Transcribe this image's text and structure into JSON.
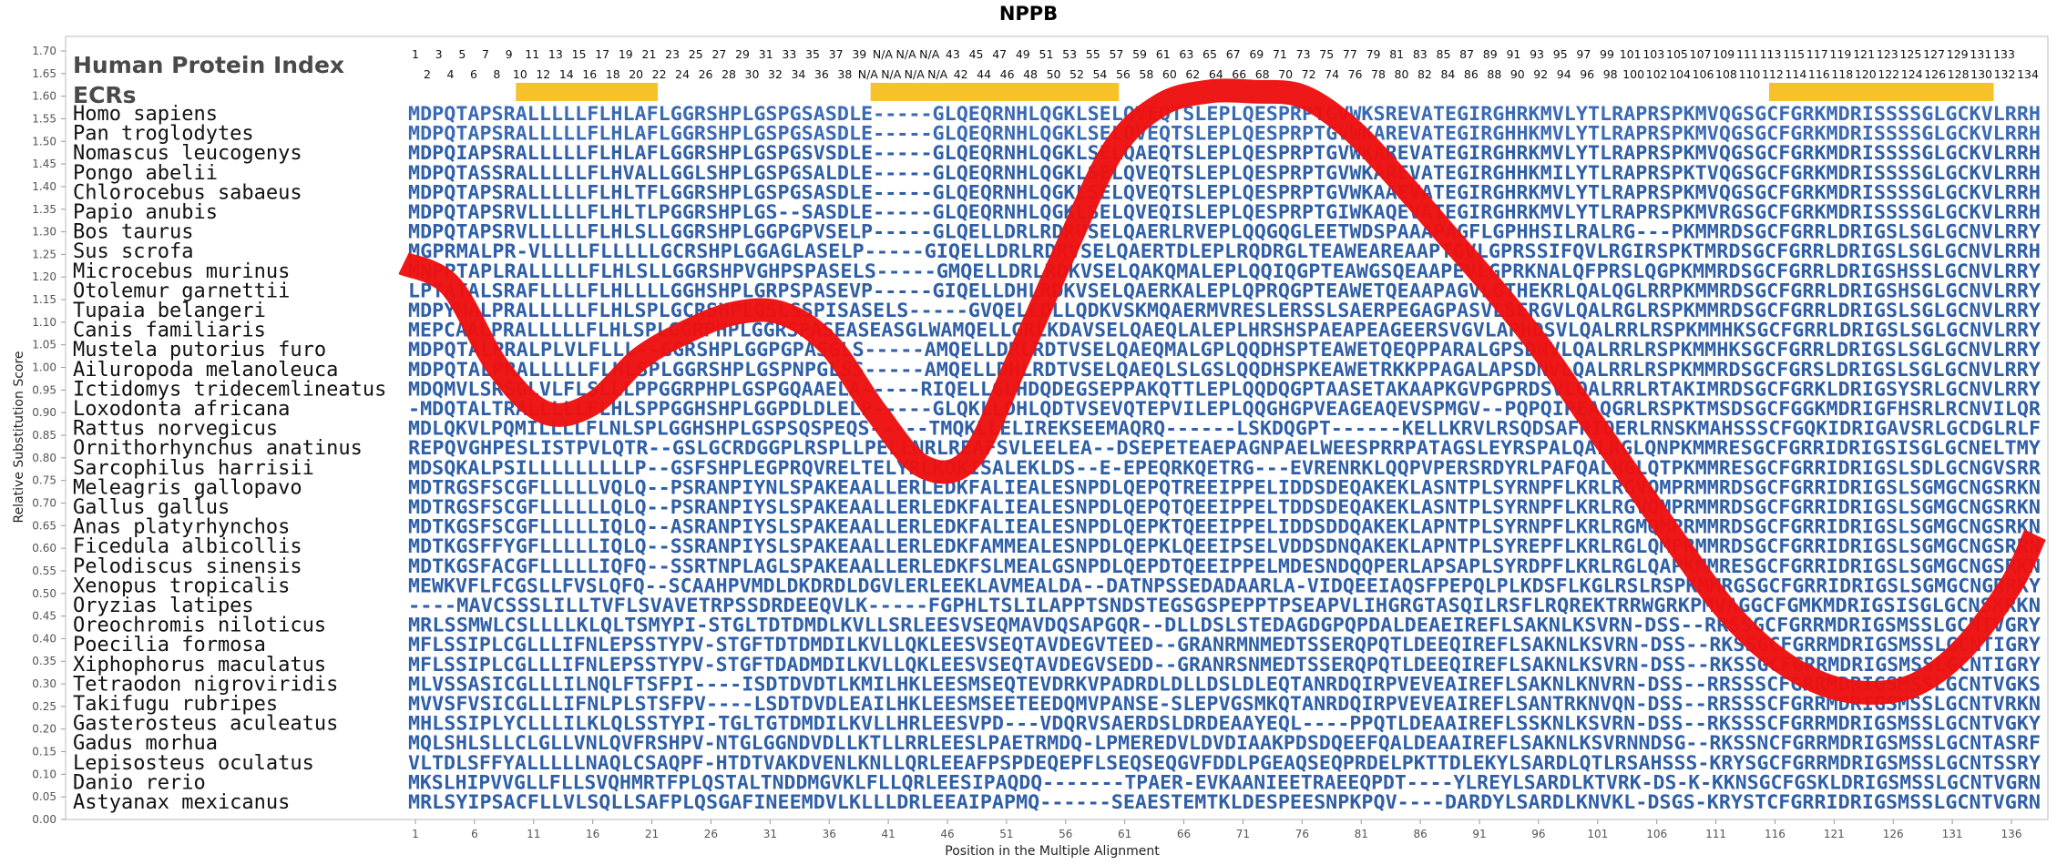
{
  "chart_data": {
    "type": "line",
    "title": "NPPB",
    "xlabel": "Position in the Multiple Alignment",
    "ylabel": "Relative Substitution Score",
    "ylim": [
      0,
      1.7
    ],
    "xlim": [
      1,
      138
    ],
    "y_ticks": [
      "0.00",
      "0.05",
      "0.10",
      "0.15",
      "0.20",
      "0.25",
      "0.30",
      "0.35",
      "0.40",
      "0.45",
      "0.50",
      "0.55",
      "0.60",
      "0.65",
      "0.70",
      "0.75",
      "0.80",
      "0.85",
      "0.90",
      "0.95",
      "1.00",
      "1.05",
      "1.10",
      "1.15",
      "1.20",
      "1.25",
      "1.30",
      "1.35",
      "1.40",
      "1.45",
      "1.50",
      "1.55",
      "1.60",
      "1.65",
      "1.70"
    ],
    "x_ticks": [
      1,
      6,
      11,
      16,
      21,
      26,
      31,
      36,
      41,
      46,
      51,
      56,
      61,
      66,
      71,
      76,
      81,
      86,
      91,
      96,
      101,
      106,
      111,
      116,
      121,
      126,
      131,
      136
    ],
    "human_protein_index_label": "Human Protein Index",
    "ecrs_label": "ECRs",
    "index_row_odd": [
      "1",
      "3",
      "5",
      "7",
      "9",
      "11",
      "13",
      "15",
      "17",
      "19",
      "21",
      "23",
      "25",
      "27",
      "29",
      "31",
      "33",
      "35",
      "37",
      "39",
      "N/A",
      "N/A",
      "N/A",
      "43",
      "45",
      "47",
      "49",
      "51",
      "53",
      "55",
      "57",
      "59",
      "61",
      "63",
      "65",
      "67",
      "69",
      "71",
      "73",
      "75",
      "77",
      "79",
      "81",
      "83",
      "85",
      "87",
      "89",
      "91",
      "93",
      "95",
      "97",
      "99",
      "101",
      "103",
      "105",
      "107",
      "109",
      "111",
      "113",
      "115",
      "117",
      "119",
      "121",
      "123",
      "125",
      "127",
      "129",
      "131",
      "133"
    ],
    "index_row_even": [
      "2",
      "4",
      "6",
      "8",
      "10",
      "12",
      "14",
      "16",
      "18",
      "20",
      "22",
      "24",
      "26",
      "28",
      "30",
      "32",
      "34",
      "36",
      "38",
      "N/A",
      "N/A",
      "N/A",
      "N/A",
      "42",
      "44",
      "46",
      "48",
      "50",
      "52",
      "54",
      "56",
      "58",
      "60",
      "62",
      "64",
      "66",
      "68",
      "70",
      "72",
      "74",
      "76",
      "78",
      "80",
      "82",
      "84",
      "86",
      "88",
      "90",
      "92",
      "94",
      "96",
      "98",
      "100",
      "102",
      "104",
      "106",
      "108",
      "110",
      "112",
      "114",
      "116",
      "118",
      "120",
      "122",
      "124",
      "126",
      "128",
      "130",
      "132",
      "134"
    ],
    "ecrs": [
      [
        10,
        21
      ],
      [
        40,
        60
      ],
      [
        116,
        134
      ]
    ],
    "series": [
      {
        "color": "#ee1111",
        "x": [
          0,
          4,
          8,
          12,
          16,
          20,
          24,
          28,
          32,
          36,
          40,
          44,
          48,
          52,
          56,
          60,
          64,
          68,
          72,
          76,
          80,
          84,
          88,
          92,
          96,
          100,
          104,
          108,
          112,
          116,
          120,
          124,
          128,
          132,
          136,
          138
        ],
        "y": [
          1.23,
          1.18,
          1.0,
          0.9,
          0.92,
          1.02,
          1.08,
          1.12,
          1.12,
          1.05,
          0.9,
          0.78,
          0.8,
          1.02,
          1.26,
          1.48,
          1.58,
          1.61,
          1.61,
          1.6,
          1.53,
          1.42,
          1.3,
          1.18,
          1.05,
          0.9,
          0.75,
          0.6,
          0.46,
          0.36,
          0.3,
          0.28,
          0.3,
          0.38,
          0.52,
          0.63
        ]
      }
    ],
    "alignment": [
      {
        "species": "Homo sapiens",
        "seq": "MDPQTAPSRALLLLLFLHLAFLGGRSHPLGSPGSASDLE-----GLQEQRNHLQGKLSELQVEQTSLEPLQESPRPTGVWKSREVATEGIRGHRKMVLYTLRAPRSPKMVQGSGCFGRKMDRISSSSGLGCKVLRRH"
      },
      {
        "species": "Pan troglodytes",
        "seq": "MDPQTAPSRALLLLLFLHLAFLGGRSHPLGSPGSASDLE-----GLQEQRNHLQGKLSELQVEQTSLEPLQESPRPTGVWKAREVATEGIRGHHKMVLYTLRAPRSPKMVQGSGCFGRKMDRISSSSGLGCKVLRRH"
      },
      {
        "species": "Nomascus leucogenys",
        "seq": "MDPQIAPSRALLLLLFLHLAFLGGRSHPLGSPGSVSDLE-----GLQEQRNHLQGKLSELQAEQTSLEPLQESPRPTGVWKAREVATEGIRGHRKMVLYTLRAPRSPKMVQGSGCFGRKMDRISSSSGLGCKVLRRH"
      },
      {
        "species": "Pongo abelii",
        "seq": "MDPQTASSRALLLLLFLHVALLGGLSHPLGSPGSALDLE-----GLQEQRNHLQGKLSELQVEQTSLEPLQESPRPTGVWKAREVATEGIRGHHKMILYTLRAPRSPKTVQGSGCFGRKMDRISSSSGLGCKVLRRH"
      },
      {
        "species": "Chlorocebus sabaeus",
        "seq": "MDPQTAPSRALLLLLFLHLTFLGGRSHPLGSPGSASDLE-----GLQEQRNHLQGKLSELQVEQTSLEPLQESPRPTGVWKAAEVATEGIRGHRKMVLYTLRAPRSPKMVQGSGCFGRKMDRISSSSGLGCKVLRRH"
      },
      {
        "species": "Papio anubis",
        "seq": "MDPQTAPSRVLLLLLFLHLTLPGGRSHPLGS--SASDLE-----GLQEQRNHLQGKLSELQVEQISLEPLQESPRPTGIWKAQEVATEGIRGHRKMVLYTLRAPRSPKMVRGSGCFGRKMDRISSSSGLGCKVLRRH"
      },
      {
        "species": "Bos taurus",
        "seq": "MDPQTAPSRVLLLLLFLHLSLLGGRSHPLGGPGPVSELP-----GLQELLDRLRDRVSELQAERLRVEPLQQGQGLEETWDSPAAAPAGFLGPHHSILRALRG---PKMMRDSGCFGRRLDRIGSLSGLGCNVLRRY"
      },
      {
        "species": "Sus scrofa",
        "seq": "MGPRMALPR-VLLLLFLLLLLGCRSHPLGGAGLASELP-----GIQELLDRLRDRVSELQAERTDLEPLRQDRGLTEAWEAREAAPTGVLGPRSSIFQVLRGIRSPKTMRDSGCFGRRLDRIGSLSGLGCNVLRRH"
      },
      {
        "species": "Microcebus murinus",
        "seq": "MNPPTAPLRALLLLLFLHLSLLGGRSHPVGHPSPASELS-----GMQELLDRLRDKVSELQAKQMALEPLQQIQGPTEAWGSQEAAPEVLGPRKNALQFPRSLQGPKMMRDSGCFGRRLDRIGSHSSLGCNVLRRY"
      },
      {
        "species": "Otolemur garnettii",
        "seq": "LPTATALSRAFLLLLFLHLLLLGGHSHPLGRPSPASEVP-----GIQELLDHLRDKVSELQAERKALEPLQPRQGPTEAWETQEAAPAGVLGTHEKRLQALQGLRRPKMMRDSGCFGRRLDRIGSHSGLGCNVLRRY"
      },
      {
        "species": "Tupaia belangeri",
        "seq": "MDPYMALPRALLLLLFLHLSPLGCRSHPLGSLSSPISASELS-----GVQELLDLLQDKVSKMQAERMVRESLERSSLSAERPEGAGPASVLSERGVLQALRGLRSPKMMRDSGCFGRRLDRIGSLSGLGCNVLRRY"
      },
      {
        "species": "Canis familiaris",
        "seq": "MEPCAALPRALLLLLFLHLSPLGGRPHPLGGRSPASEASEASGLWAMQELLGRLKDAVSELQAEQLALEPLHRSHSPAEAPEAGEERSVGVLAPHDSVLQALRRLRSPKMMHKSGCFGRRLDRIGSLSGLGCNVLRRY"
      },
      {
        "species": "Mustela putorius furo",
        "seq": "MDPQTALPRALPLVLFLLL--GGRSHPLGGPGPASGLS-----AMQELLDRLRDTVSELQAEQMALGPLQQDHSPTEAWETQEQPPARALGPSDNVLQALRRLRSPKMMHKSGCFGRRLDRIGSLSGLGCNVLRRY"
      },
      {
        "species": "Ailuropoda melanoleuca",
        "seq": "MDPQTALPRALLLLLFLHLSPLGGRSHPLGSPNPGLSS-----AMQELLDHLRDTVSELQAEQLSLGSLQQDHSPKEAWETRKKPPAGALAPSDNVLQALRRLRSPKMMRDSGCFGRSLDRIGSLSGLGCNVLRRY"
      },
      {
        "species": "Ictidomys tridecemlineatus",
        "seq": "MDQMVLSRSGLVLFLSLLLPPGGRPHPLGSPGQAAELA-----RIQELLGLHDQDEGSEPPAKQTTLEPLQQDQGPTAASETAKAAPKGVPGPRDSVLQALRRLRTAKIMRDSGCFGRKLDRIGSYSRLGCNVLRRY"
      },
      {
        "species": "Loxodonta africana",
        "seq": "-MDQTALTRALLLLLFLHLSPPGGHSHPLGGPDLDLELP-----GLQKLLDHLQDTVSEVQTEPVILEPLQQGHGPVEAGEAQEVSPMGV--PQPQIPEAQGRLRSPKTMSDSGCFGGKMDRIGFHSRLRCNVILQR"
      },
      {
        "species": "Rattus norvegicus",
        "seq": "MDLQKVLPQMILLLLFLNLSPLGGHSHPLGSPSQSPEQS-----TMQKLLELIREKSEEMAQRQ------LSKDQGPT------KELLKRVLRSQDSAFRIQERLRNSKMAHSSSCFGQKIDRIGAVSRLGCDGLRLF"
      },
      {
        "species": "Ornithorhynchus anatinus",
        "seq": "REPQVGHPESLISTPVLQTR--GSLGCRDGGPLRSPLLPELLNRLREAFSVLEELEA--DSEPETEAEPAGNPAELWEESPRRPATAGSLEYRSPALQALRGLQNPKMMRESGCFGRRIDRIGSISGLGCNELTMY"
      },
      {
        "species": "Sarcophilus harrisii",
        "seq": "MDSQKALPSILLLLLLLLLP--GSFSHPLEGPRQVRELTELYRLKDKISALEKLDS--E-EPEQRKQETRG---EVRENRKLQQPVPERSRDYRLPAFQALHGLQTPKMMRESGCFGRRIDRIGSLSDLGCNGVSRR"
      },
      {
        "species": "Meleagris gallopavo",
        "seq": "MDTRGSFSCGFLLLLLVQLQ--PSRANPIYNLSPAKEAALLERLEDKFALIEALESNPDLQEPQTREEIPPELIDDSDEQAKEKLASNTPLSYRNPFLKRLRGVQMPRMMRDSGCFGRRIDRIGSLSGMGCNGSRKN"
      },
      {
        "species": "Gallus gallus",
        "seq": "MDTRGSFSCGFLLLLLLQLQ--PSRANPIYSLSPAKEAALLERLEDKFALIEALESNPDLQEPQTQEEIPPELTDDSDEQAKEKLASNTPLSYRNPFLKRLRGVQMPRMMRDSGCFGRRIDRIGSLSGMGCNGSRKN"
      },
      {
        "species": "Anas platyrhynchos",
        "seq": "MDTKGSFSCGFLLLLLIQLQ--ASRANPIYSLSPAKEAALLERLEDKFALIEALESNPDLQEPKTQEEIPPELIDDSDDQAKEKLAPNTPLSYRNPFLKRLRGMQMPRMMRDSGCFGRRIDRIGSLSGMGCNGSRKN"
      },
      {
        "species": "Ficedula albicollis",
        "seq": "MDTKGSFFYGFLLLLLIQLQ--SSRANPIYSLSPAKEAALLERLEDKFAMMEALESNPDLQEPKLQEEIPSELVDDSDNQAKEKLAPNTPLSYREPFLKRLRGLQMPRMMRDSGCFGRRIDRIGSLSGMGCNGSRRN"
      },
      {
        "species": "Pelodiscus sinensis",
        "seq": "MDTKGSFACGFLLLLLIQFQ--SSRTNPLAGLSPAKEAALLERLEDKFSLMEALGSNPDLQEPDTQEEIPPELMDESNDQQPERLAPSAPLSYRDPFLKRLRGLQAPKMMRESGCFGRRIDRIGSLSGMGCNGSRKN"
      },
      {
        "species": "Xenopus tropicalis",
        "seq": "MEWKVFLFCGSLLFVSLQFQ--SCAAHPVMDLDKDRDLDGVLERLEEKLAVMEALDA--DATNPSSEDADAARLA-VIDQEEIAQSFPEPQLPLKDSFLKGLRSLRSPKMMRGSGCFGRRIDRIGSLSGMGCNGRRKY"
      },
      {
        "species": "Oryzias latipes",
        "seq": "----MAVCSSSLILLTVFLSVAVETRPSSDRDEEQVLK-----FGPHLTSLILAPPTSNDSTEGSGSPEPPTPSEAPVLIHGRGTASQILRSFLRQREKTRRWGRKPMVAGGCFGMKMDRIGSISGLGCNSKRKN"
      },
      {
        "species": "Oreochromis niloticus",
        "seq": "MRLSSMWLCSLLLLKLQLTSMYPI-STGLTDTDMDLKVLLSRLEESVSEQMAVDQSAPGQR--DLLDSLSTEDAGDGPQPDALDEAEIREFLSAKNLKSVRN-DSS--RRSSGCFGRRMDRIGSMSSLGCNTVGRY"
      },
      {
        "species": "Poecilia formosa",
        "seq": "MFLSSIPLCGLLLIFNLEPSSTYPV-STGFTDTDMDILKVLLQKLEESVSEQTAVDEGVTEED--GRANRMNMEDTSSERQPQTLDEEQIREFLSAKNLKSVRN-DSS--RKSSGCFGRRMDRIGSMSSLGCNTIGRY"
      },
      {
        "species": "Xiphophorus maculatus",
        "seq": "MFLSSIPLCGLLLIFNLEPSSTYPV-STGFTDADMDILKVLLQKLEESVSEQTAVDEGVSEDD--GRANRSNMEDTSSERQPQTLDEEQIREFLSAKNLKSVRN-DSS--RKSSGCFGRRMDRIGSMSSLGCNTIGRY"
      },
      {
        "species": "Tetraodon nigroviridis",
        "seq": "MLVSSASICGLLLILNQLFTSFPI----ISDTDVDTLKMILHKLEESMSEQTEVDRKVPADRDLDLLDSLDLEQTANRDQIRPVEVEAIREFLSAKNLKNVRN-DSS--RRSSSCFGRRMDRIGSMSSLGCNTVGKS"
      },
      {
        "species": "Takifugu rubripes",
        "seq": "MVVSFVSICGLLLIFNLPLSTSFPV----LSDTDVDLEAILHKLEESMSEETEEDQMVPANSE-SLEPVGSMKQTANRDQIRPVEVEAIREFLSANTRKNVQN-DSS--RRSSSCFGRRMDRIGSMSSLGCNTVRKN"
      },
      {
        "species": "Gasterosteus aculeatus",
        "seq": "MHLSSIPLYCLLLILKLQLSSTYPI-TGLTGTDMDILKVLLHRLEESVPD---VDQRVSAERDSLDRDEAAYEQL----PPQTLDEAAIREFLSSKNLKSVRN-DSS--RKSSSCFGRRMDRIGSMSSLGCNTVGKY"
      },
      {
        "species": "Gadus morhua",
        "seq": "MQLSHLSLLCLGLLVNLQVFRSHPV-NTGLGGNDVDLLKTLLRRLEESLPAETRMDQ-LPMEREDVLDVDIAAKPDSDQEEFQALDEAAIREFLSAKNLKSVRNNDSG--RKSSNCFGRRMDRIGSMSSLGCNTASRF"
      },
      {
        "species": "Lepisosteus oculatus",
        "seq": "VLTDLSFFYALLLLLNAQLCSAQPF-HTDTVAKDVENLKNLLQRLEEAFPSPDEQEPFLSEQSEQGVFDDLPGEAQSEQPRDELPKTTDLEKYLSARDLQTLRSAHSSS-KRYSGCFGRRMDRIGSMSSLGCNTSSRY"
      },
      {
        "species": "Danio rerio",
        "seq": "MKSLHIPVVGLLFLLSVQHMRTFPLQSTALTNDDMGVKLFLLQRLEESIPAQDQ-------TPAER-EVKAANIEETRAEEQPDT----YLREYLSARDLKTVRK-DS-K-KKNSGCFGSKLDRIGSMSSLGCNTVGRN"
      },
      {
        "species": "Astyanax mexicanus",
        "seq": "MRLSYIPSACFLLVLSQLLSAFPLQSGAFINEEMDVLKLLLDRLEEAIPAPMQ------SEAESTEMTKLDESPEESNPKPQV----DARDYLSARDLKNVKL-DSGS-KRYSTCFGRRIDRIGSMSSLGCNTVGRN"
      }
    ]
  }
}
